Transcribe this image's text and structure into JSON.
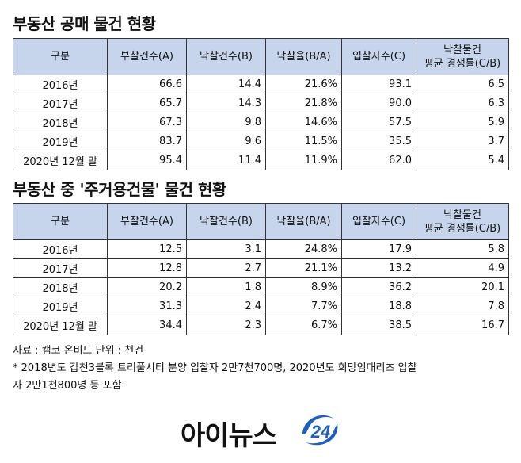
{
  "title1": "부동산 공매 물건 현황",
  "title2": "부동산 중 '주거용건물' 물건 현황",
  "headers": {
    "col0": "구분",
    "col1": "부찰건수(A)",
    "col2": "낙찰건수(B)",
    "col3": "낙찰율(B/A)",
    "col4": "입찰자수(C)",
    "col5_line1": "낙찰물건",
    "col5_line2": "평균 경쟁률(C/B)"
  },
  "table1": {
    "rows": [
      {
        "year": "2016년",
        "bids": "66.6",
        "wins": "14.4",
        "rate": "21.6%",
        "bidders": "93.1",
        "comp": "6.5"
      },
      {
        "year": "2017년",
        "bids": "65.7",
        "wins": "14.3",
        "rate": "21.8%",
        "bidders": "90.0",
        "comp": "6.3"
      },
      {
        "year": "2018년",
        "bids": "67.3",
        "wins": "9.8",
        "rate": "14.6%",
        "bidders": "57.5",
        "comp": "5.9"
      },
      {
        "year": "2019년",
        "bids": "83.7",
        "wins": "9.6",
        "rate": "11.5%",
        "bidders": "35.5",
        "comp": "3.7"
      },
      {
        "year": "2020년 12월 말",
        "bids": "95.4",
        "wins": "11.4",
        "rate": "11.9%",
        "bidders": "62.0",
        "comp": "5.4"
      }
    ]
  },
  "table2": {
    "rows": [
      {
        "year": "2016년",
        "bids": "12.5",
        "wins": "3.1",
        "rate": "24.8%",
        "bidders": "17.9",
        "comp": "5.8"
      },
      {
        "year": "2017년",
        "bids": "12.8",
        "wins": "2.7",
        "rate": "21.1%",
        "bidders": "13.2",
        "comp": "4.9"
      },
      {
        "year": "2018년",
        "bids": "20.2",
        "wins": "1.8",
        "rate": "8.9%",
        "bidders": "36.2",
        "comp": "20.1"
      },
      {
        "year": "2019년",
        "bids": "31.3",
        "wins": "2.4",
        "rate": "7.7%",
        "bidders": "18.8",
        "comp": "7.8"
      },
      {
        "year": "2020년 12월 말",
        "bids": "34.4",
        "wins": "2.3",
        "rate": "6.7%",
        "bidders": "38.5",
        "comp": "16.7"
      }
    ]
  },
  "notes": {
    "source": "자료 : 캠코 온비드 단위 : 천건",
    "footnote_line1": "* 2018년도 갑천3블록 트리풀시티 분양 입찰자 2만7천700명, 2020년도 희망임대리츠 입찰",
    "footnote_line2": "자 2만1천800명 등 포함"
  },
  "logo": {
    "text": "아이뉴스",
    "badge": "24",
    "badge_color": "#1f5fbf"
  },
  "colors": {
    "header_bg": "#c6d5ec",
    "border": "#333333"
  }
}
